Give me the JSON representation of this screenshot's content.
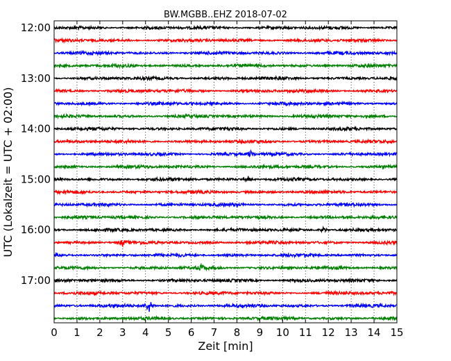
{
  "chart_data": {
    "type": "line",
    "title": "BW.MGBB..EHZ 2018-07-02",
    "xlabel": "Zeit  [min]",
    "ylabel": "UTC (Lokalzeit = UTC + 02:00)",
    "xlim": [
      0,
      15
    ],
    "x_ticks": [
      "0",
      "1",
      "2",
      "3",
      "4",
      "5",
      "6",
      "7",
      "8",
      "9",
      "10",
      "11",
      "12",
      "13",
      "14",
      "15"
    ],
    "y_ticks": [
      "12:00",
      "13:00",
      "14:00",
      "15:00",
      "16:00",
      "17:00"
    ],
    "grid": "vertical dotted",
    "trace_colors": [
      "#000000",
      "#ff0000",
      "#0000ff",
      "#008000"
    ],
    "traces": [
      {
        "start": "12:00",
        "color": "#000000"
      },
      {
        "start": "12:15",
        "color": "#ff0000"
      },
      {
        "start": "12:30",
        "color": "#0000ff"
      },
      {
        "start": "12:45",
        "color": "#008000"
      },
      {
        "start": "13:00",
        "color": "#000000"
      },
      {
        "start": "13:15",
        "color": "#ff0000"
      },
      {
        "start": "13:30",
        "color": "#0000ff"
      },
      {
        "start": "13:45",
        "color": "#008000"
      },
      {
        "start": "14:00",
        "color": "#000000"
      },
      {
        "start": "14:15",
        "color": "#ff0000"
      },
      {
        "start": "14:30",
        "color": "#0000ff"
      },
      {
        "start": "14:45",
        "color": "#008000"
      },
      {
        "start": "15:00",
        "color": "#000000"
      },
      {
        "start": "15:15",
        "color": "#ff0000"
      },
      {
        "start": "15:30",
        "color": "#0000ff"
      },
      {
        "start": "15:45",
        "color": "#008000"
      },
      {
        "start": "16:00",
        "color": "#000000"
      },
      {
        "start": "16:15",
        "color": "#ff0000"
      },
      {
        "start": "16:30",
        "color": "#0000ff"
      },
      {
        "start": "16:45",
        "color": "#008000"
      },
      {
        "start": "17:00",
        "color": "#000000"
      },
      {
        "start": "17:15",
        "color": "#ff0000"
      },
      {
        "start": "17:30",
        "color": "#0000ff"
      },
      {
        "start": "17:45",
        "color": "#008000"
      }
    ],
    "events": [
      {
        "trace": "17:30",
        "minute": 4.15,
        "note": "largest visible transient"
      },
      {
        "trace": "16:45",
        "minute": 6.45
      },
      {
        "trace": "16:00",
        "minute": 11.8
      },
      {
        "trace": "16:15",
        "minute": 3.0
      },
      {
        "trace": "14:30",
        "minute": 8.6
      },
      {
        "trace": "15:00",
        "minute": 8.5
      }
    ]
  }
}
